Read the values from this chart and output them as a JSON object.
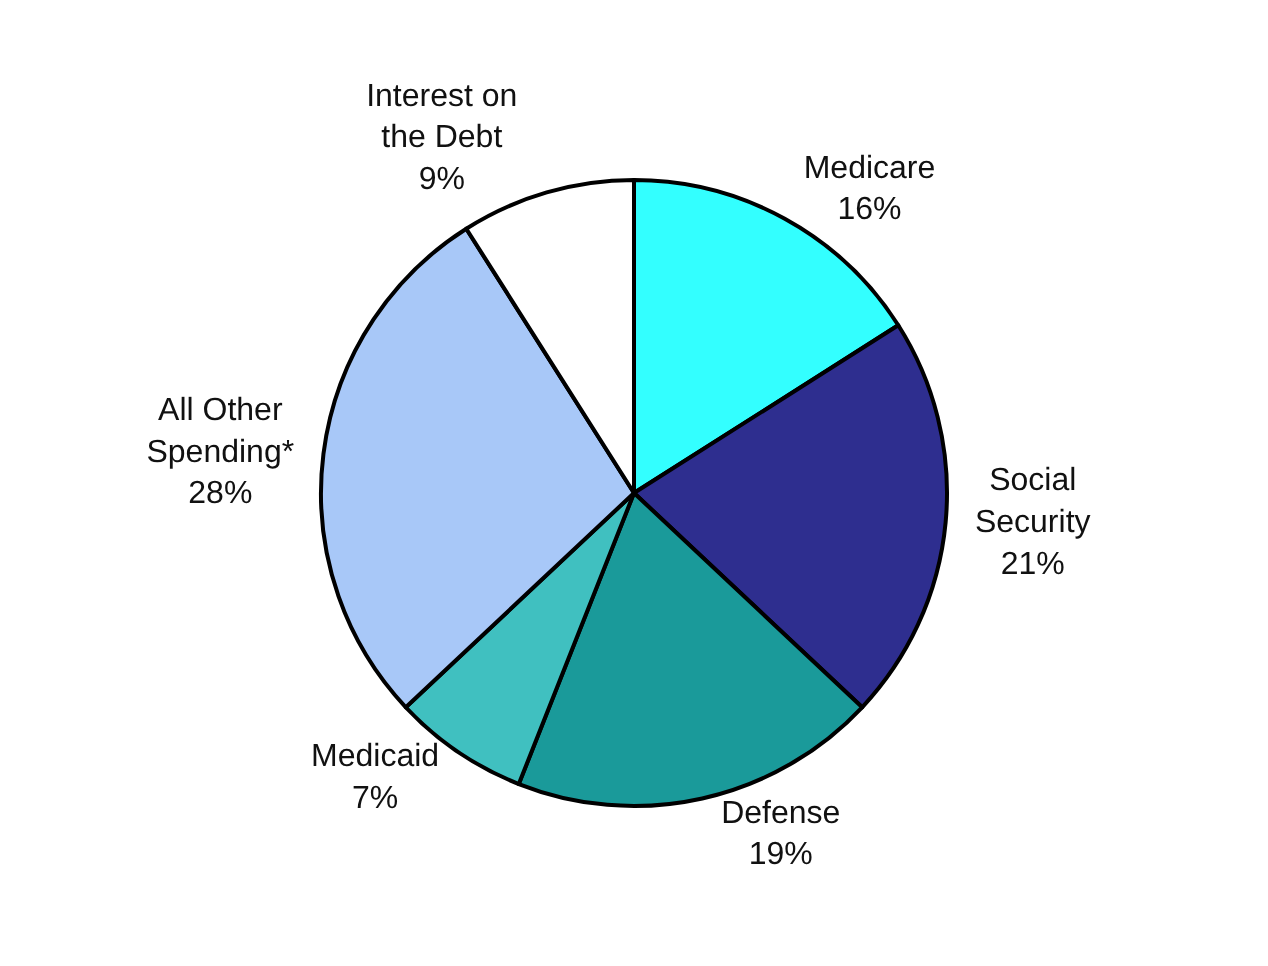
{
  "chart_data": {
    "type": "pie",
    "categories": [
      "Medicare",
      "Social Security",
      "Defense",
      "Medicaid",
      "All Other Spending*",
      "Interest on the Debt"
    ],
    "values": [
      16,
      21,
      19,
      7,
      28,
      9
    ],
    "value_labels": [
      "16%",
      "21%",
      "19%",
      "7%",
      "28%",
      "9%"
    ],
    "colors": [
      "#33ffff",
      "#2e2e8f",
      "#1a9a9a",
      "#40c0c0",
      "#a8c8f8",
      "#ffffff"
    ],
    "legend": false
  }
}
